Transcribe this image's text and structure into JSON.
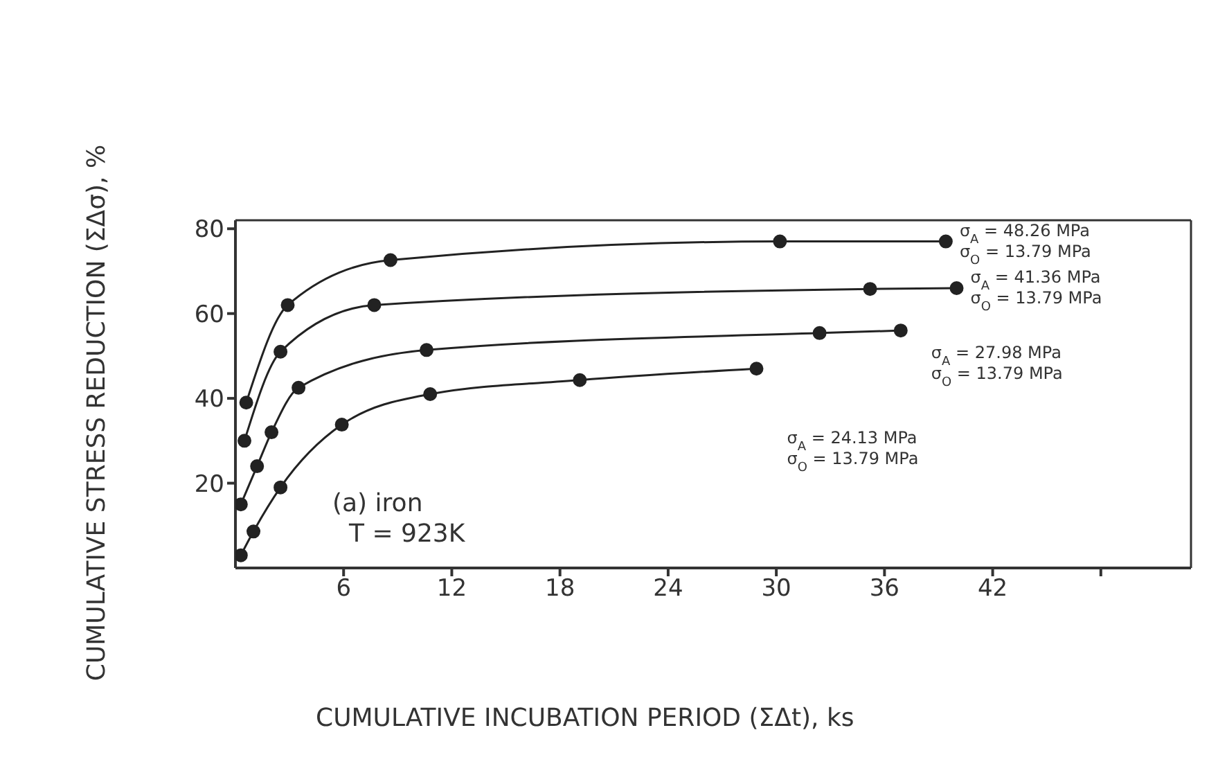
{
  "chart_data": {
    "type": "line",
    "xlabel": "CUMULATIVE INCUBATION PERIOD (ΣΔt), ks",
    "ylabel": "CUMULATIVE STRESS REDUCTION (ΣΔσ), %",
    "xlim": [
      0,
      53
    ],
    "xticks": [
      6,
      12,
      18,
      24,
      30,
      36,
      42,
      {
        "value": 48,
        "label": null
      }
    ],
    "ylim": [
      0,
      82
    ],
    "yticks": [
      20,
      40,
      60,
      80
    ],
    "marker": "circle",
    "line_style": "solid",
    "series": [
      {
        "name": "σ$_{A}$ = 48.26 MPa\nσ$_{O}$ = 13.79 MPa",
        "color": "#222222",
        "x": [
          0.6,
          2.9,
          8.6,
          30.2,
          39.4
        ],
        "values": [
          39,
          62,
          72.6,
          77,
          77
        ]
      },
      {
        "name": "σ$_{A}$ = 41.36 MPa\nσ$_{O}$ = 13.79 MPa",
        "color": "#222222",
        "x": [
          0.5,
          2.5,
          7.7,
          35.2,
          40
        ],
        "values": [
          30,
          51,
          62,
          65.8,
          66
        ]
      },
      {
        "name": "σ$_{A}$ = 27.98 MPa\nσ$_{O}$ = 13.79 MPa",
        "color": "#222222",
        "x": [
          0.3,
          1.2,
          2.0,
          3.5,
          10.6,
          32.4,
          36.9
        ],
        "values": [
          15,
          24,
          32,
          42.5,
          51.4,
          55.4,
          56
        ]
      },
      {
        "name": "σ$_{A}$ = 24.13 MPa\nσ$_{O}$ = 13.79 MPa",
        "color": "#222222",
        "x": [
          0.3,
          1.0,
          2.5,
          5.9,
          10.8,
          19.1,
          28.9
        ],
        "values": [
          3,
          8.6,
          19,
          33.8,
          41,
          44.3,
          47
        ]
      }
    ],
    "annotations": [
      "(a) iron",
      "T = 923K"
    ]
  }
}
